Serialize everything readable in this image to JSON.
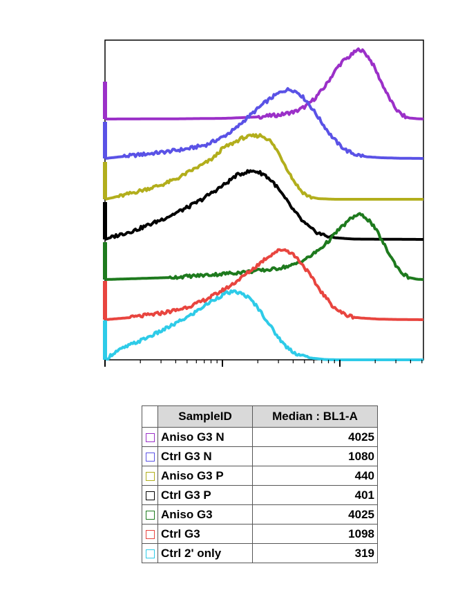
{
  "chart_data": {
    "type": "area",
    "xscale": "log",
    "x_ticks_shown": "log decades, unlabeled",
    "grid": false,
    "legend": "table below plot",
    "columns": [
      "SampleID",
      "Median : BL1-A"
    ],
    "series": [
      {
        "name": "Aniso G3 N",
        "median": "4025",
        "color": "#9b30c8",
        "stroke_width": 4,
        "points": [
          [
            0.0,
            0.0
          ],
          [
            0.22,
            0.003
          ],
          [
            0.38,
            0.01
          ],
          [
            0.48,
            0.03
          ],
          [
            0.55,
            0.06
          ],
          [
            0.6,
            0.11
          ],
          [
            0.63,
            0.18
          ],
          [
            0.66,
            0.3
          ],
          [
            0.69,
            0.46
          ],
          [
            0.71,
            0.6
          ],
          [
            0.73,
            0.74
          ],
          [
            0.75,
            0.84
          ],
          [
            0.77,
            0.9
          ],
          [
            0.785,
            0.96
          ],
          [
            0.8,
            1.0
          ],
          [
            0.815,
            0.95
          ],
          [
            0.83,
            0.87
          ],
          [
            0.845,
            0.75
          ],
          [
            0.86,
            0.6
          ],
          [
            0.875,
            0.46
          ],
          [
            0.89,
            0.32
          ],
          [
            0.905,
            0.2
          ],
          [
            0.92,
            0.11
          ],
          [
            0.935,
            0.05
          ],
          [
            0.955,
            0.015
          ],
          [
            0.98,
            0.004
          ],
          [
            1.0,
            0.0
          ]
        ]
      },
      {
        "name": "Ctrl G3 N",
        "median": "1080",
        "color": "#5a52e6",
        "stroke_width": 4,
        "points": [
          [
            0.0,
            0.0
          ],
          [
            0.08,
            0.04
          ],
          [
            0.18,
            0.09
          ],
          [
            0.26,
            0.14
          ],
          [
            0.32,
            0.2
          ],
          [
            0.37,
            0.31
          ],
          [
            0.41,
            0.43
          ],
          [
            0.44,
            0.56
          ],
          [
            0.47,
            0.68
          ],
          [
            0.5,
            0.8
          ],
          [
            0.53,
            0.9
          ],
          [
            0.56,
            0.98
          ],
          [
            0.585,
            1.0
          ],
          [
            0.61,
            0.94
          ],
          [
            0.635,
            0.82
          ],
          [
            0.66,
            0.66
          ],
          [
            0.685,
            0.49
          ],
          [
            0.71,
            0.33
          ],
          [
            0.735,
            0.2
          ],
          [
            0.76,
            0.11
          ],
          [
            0.785,
            0.06
          ],
          [
            0.82,
            0.025
          ],
          [
            0.87,
            0.01
          ],
          [
            0.93,
            0.003
          ],
          [
            1.0,
            0.0
          ]
        ]
      },
      {
        "name": "Aniso G3 P",
        "median": "440",
        "color": "#b2ae1c",
        "stroke_width": 4,
        "points": [
          [
            0.0,
            0.0
          ],
          [
            0.05,
            0.05
          ],
          [
            0.12,
            0.14
          ],
          [
            0.18,
            0.22
          ],
          [
            0.23,
            0.32
          ],
          [
            0.27,
            0.43
          ],
          [
            0.31,
            0.53
          ],
          [
            0.34,
            0.62
          ],
          [
            0.37,
            0.77
          ],
          [
            0.4,
            0.84
          ],
          [
            0.43,
            0.92
          ],
          [
            0.46,
            0.95
          ],
          [
            0.49,
            0.96
          ],
          [
            0.515,
            0.9
          ],
          [
            0.54,
            0.74
          ],
          [
            0.565,
            0.52
          ],
          [
            0.59,
            0.3
          ],
          [
            0.615,
            0.13
          ],
          [
            0.64,
            0.04
          ],
          [
            0.67,
            0.01
          ],
          [
            0.72,
            0.0
          ],
          [
            1.0,
            0.0
          ]
        ]
      },
      {
        "name": "Ctrl G3 P",
        "median": "401",
        "color": "#000000",
        "stroke_width": 4,
        "points": [
          [
            0.0,
            0.0
          ],
          [
            0.04,
            0.06
          ],
          [
            0.1,
            0.14
          ],
          [
            0.16,
            0.25
          ],
          [
            0.21,
            0.35
          ],
          [
            0.26,
            0.46
          ],
          [
            0.3,
            0.56
          ],
          [
            0.34,
            0.68
          ],
          [
            0.38,
            0.8
          ],
          [
            0.41,
            0.91
          ],
          [
            0.44,
            0.96
          ],
          [
            0.47,
            0.98
          ],
          [
            0.5,
            0.93
          ],
          [
            0.53,
            0.81
          ],
          [
            0.56,
            0.62
          ],
          [
            0.59,
            0.43
          ],
          [
            0.62,
            0.26
          ],
          [
            0.65,
            0.14
          ],
          [
            0.68,
            0.07
          ],
          [
            0.72,
            0.025
          ],
          [
            0.78,
            0.005
          ],
          [
            1.0,
            0.0
          ]
        ]
      },
      {
        "name": "Aniso G3",
        "median": "4025",
        "color": "#1e7a1e",
        "stroke_width": 4,
        "points": [
          [
            0.0,
            0.0
          ],
          [
            0.2,
            0.03
          ],
          [
            0.35,
            0.08
          ],
          [
            0.45,
            0.12
          ],
          [
            0.53,
            0.16
          ],
          [
            0.59,
            0.22
          ],
          [
            0.64,
            0.34
          ],
          [
            0.68,
            0.49
          ],
          [
            0.71,
            0.63
          ],
          [
            0.73,
            0.75
          ],
          [
            0.755,
            0.86
          ],
          [
            0.775,
            0.95
          ],
          [
            0.795,
            1.0
          ],
          [
            0.815,
            0.97
          ],
          [
            0.835,
            0.88
          ],
          [
            0.855,
            0.73
          ],
          [
            0.875,
            0.55
          ],
          [
            0.895,
            0.37
          ],
          [
            0.915,
            0.21
          ],
          [
            0.935,
            0.09
          ],
          [
            0.955,
            0.03
          ],
          [
            0.98,
            0.005
          ],
          [
            1.0,
            0.0
          ]
        ]
      },
      {
        "name": "Ctrl G3",
        "median": "1098",
        "color": "#e8453f",
        "stroke_width": 4,
        "points": [
          [
            0.0,
            0.0
          ],
          [
            0.08,
            0.03
          ],
          [
            0.16,
            0.08
          ],
          [
            0.23,
            0.14
          ],
          [
            0.29,
            0.23
          ],
          [
            0.34,
            0.34
          ],
          [
            0.39,
            0.47
          ],
          [
            0.43,
            0.6
          ],
          [
            0.47,
            0.74
          ],
          [
            0.505,
            0.87
          ],
          [
            0.535,
            0.96
          ],
          [
            0.56,
            1.0
          ],
          [
            0.585,
            0.95
          ],
          [
            0.61,
            0.84
          ],
          [
            0.635,
            0.69
          ],
          [
            0.66,
            0.52
          ],
          [
            0.685,
            0.36
          ],
          [
            0.71,
            0.22
          ],
          [
            0.735,
            0.12
          ],
          [
            0.76,
            0.06
          ],
          [
            0.8,
            0.025
          ],
          [
            0.86,
            0.008
          ],
          [
            0.93,
            0.002
          ],
          [
            1.0,
            0.0
          ]
        ]
      },
      {
        "name": "Ctrl 2' only",
        "median": "319",
        "color": "#2ecbe8",
        "stroke_width": 4,
        "points": [
          [
            0.0,
            0.0
          ],
          [
            0.03,
            0.11
          ],
          [
            0.07,
            0.2
          ],
          [
            0.12,
            0.3
          ],
          [
            0.17,
            0.41
          ],
          [
            0.22,
            0.53
          ],
          [
            0.27,
            0.66
          ],
          [
            0.31,
            0.79
          ],
          [
            0.35,
            0.91
          ],
          [
            0.385,
            0.99
          ],
          [
            0.415,
            1.0
          ],
          [
            0.445,
            0.94
          ],
          [
            0.475,
            0.8
          ],
          [
            0.505,
            0.6
          ],
          [
            0.535,
            0.39
          ],
          [
            0.565,
            0.21
          ],
          [
            0.6,
            0.09
          ],
          [
            0.64,
            0.03
          ],
          [
            0.69,
            0.005
          ],
          [
            0.73,
            0.0
          ],
          [
            1.0,
            0.0
          ]
        ]
      }
    ]
  }
}
